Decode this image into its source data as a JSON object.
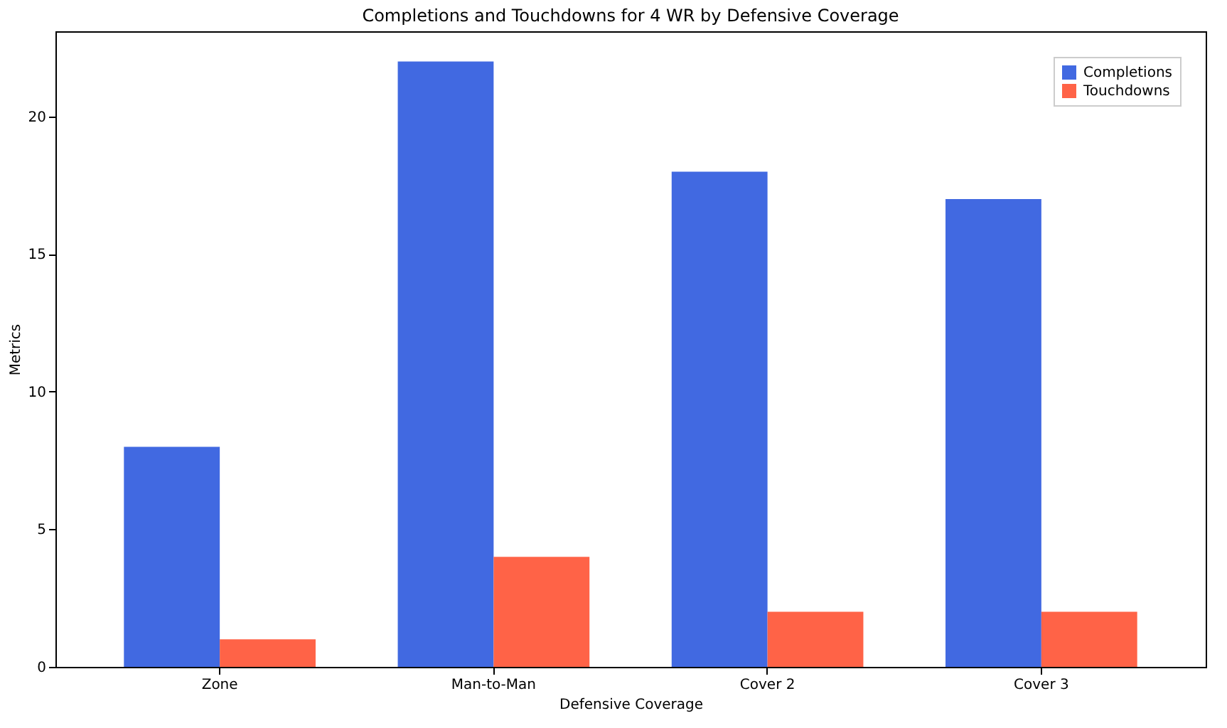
{
  "chart_data": {
    "type": "bar",
    "title": "Completions and Touchdowns for 4 WR by Defensive Coverage",
    "xlabel": "Defensive Coverage",
    "ylabel": "Metrics",
    "categories": [
      "Zone",
      "Man-to-Man",
      "Cover 2",
      "Cover 3"
    ],
    "series": [
      {
        "name": "Completions",
        "color": "#4169e1",
        "values": [
          8,
          22,
          18,
          17
        ]
      },
      {
        "name": "Touchdowns",
        "color": "#ff6347",
        "values": [
          1,
          4,
          2,
          2
        ]
      }
    ],
    "ylim": [
      0,
      23.1
    ],
    "yticks": [
      0,
      5,
      10,
      15,
      20
    ],
    "grid": false,
    "legend": "top right"
  }
}
